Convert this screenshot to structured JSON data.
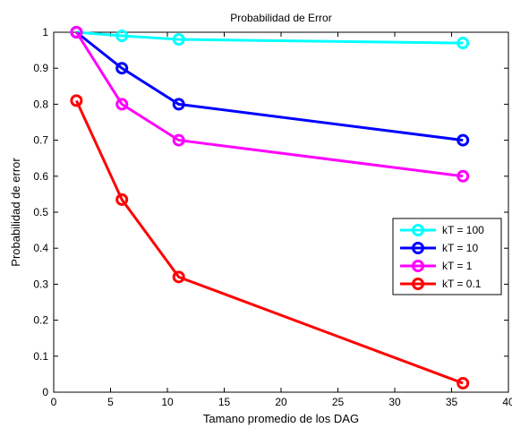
{
  "chart_data": {
    "type": "line",
    "title": "Probabilidad de Error",
    "xlabel": "Tamano promedio de los DAG",
    "ylabel": "Probabilidad de error",
    "xlim": [
      0,
      40
    ],
    "ylim": [
      0,
      1
    ],
    "xticks": [
      "0",
      "5",
      "10",
      "15",
      "20",
      "25",
      "30",
      "35",
      "40"
    ],
    "yticks": [
      "0",
      "0.1",
      "0.2",
      "0.3",
      "0.4",
      "0.5",
      "0.6",
      "0.7",
      "0.8",
      "0.9",
      "1"
    ],
    "x": [
      2,
      6,
      11,
      36
    ],
    "grid": false,
    "legend_position": "right",
    "series": [
      {
        "name": "kT = 100",
        "color": "#00ffff",
        "values": [
          1.0,
          0.99,
          0.98,
          0.97
        ]
      },
      {
        "name": "kT = 10",
        "color": "#0000ff",
        "values": [
          1.0,
          0.9,
          0.8,
          0.7
        ]
      },
      {
        "name": "kT = 1",
        "color": "#ff00ff",
        "values": [
          1.0,
          0.8,
          0.7,
          0.6
        ]
      },
      {
        "name": "kT = 0.1",
        "color": "#ff0000",
        "values": [
          0.81,
          0.535,
          0.32,
          0.025
        ]
      }
    ]
  }
}
